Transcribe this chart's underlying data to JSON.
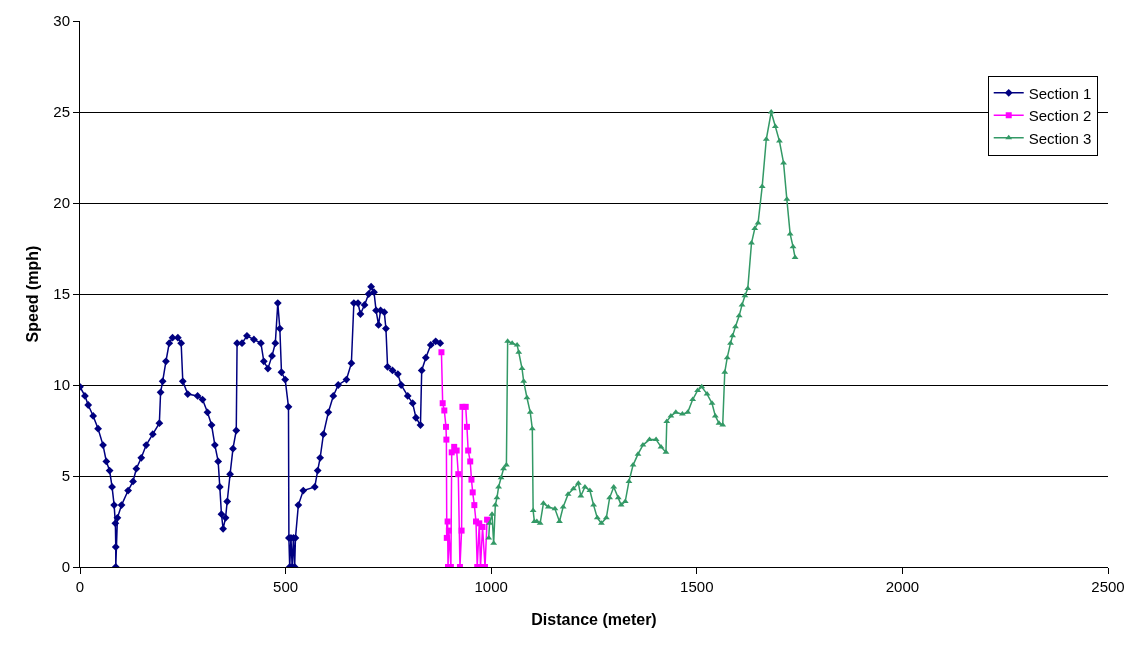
{
  "chart_data": {
    "type": "line",
    "xlabel": "Distance (meter)",
    "ylabel": "Speed (mph)",
    "xlim": [
      0,
      2500
    ],
    "xticks": [
      0,
      500,
      1000,
      1500,
      2000,
      2500
    ],
    "ylim": [
      0,
      30
    ],
    "yticks": [
      0,
      5,
      10,
      15,
      20,
      25,
      30
    ],
    "grid": "y",
    "legend": "top right",
    "line_style": "solid",
    "series": [
      {
        "name": "Section 1",
        "color": "#000080",
        "marker": "diamond",
        "x": [
          0,
          12,
          20,
          32,
          44,
          56,
          64,
          72,
          78,
          83,
          86,
          87,
          87,
          91,
          101,
          117,
          129,
          137,
          149,
          161,
          177,
          193,
          196,
          201,
          209,
          217,
          225,
          238,
          246,
          250,
          262,
          286,
          298,
          310,
          320,
          328,
          336,
          340,
          344,
          348,
          354,
          358,
          365,
          372,
          380,
          382,
          394,
          406,
          423,
          440,
          447,
          457,
          467,
          475,
          481,
          486,
          490,
          499,
          507,
          508,
          510,
          513,
          516,
          519,
          522,
          524,
          531,
          543,
          571,
          578,
          584,
          592,
          604,
          616,
          628,
          648,
          660,
          666,
          676,
          682,
          692,
          702,
          708,
          715,
          720,
          726,
          731,
          740,
          744,
          748,
          760,
          773,
          781,
          797,
          809,
          817,
          828,
          831,
          841,
          853,
          865,
          876
        ],
        "values": [
          9.9,
          9.4,
          8.9,
          8.3,
          7.6,
          6.7,
          5.8,
          5.3,
          4.4,
          3.4,
          2.4,
          1.1,
          0,
          2.7,
          3.4,
          4.2,
          4.7,
          5.4,
          6,
          6.7,
          7.3,
          7.9,
          9.6,
          10.2,
          11.3,
          12.3,
          12.6,
          12.6,
          12.3,
          10.2,
          9.5,
          9.4,
          9.2,
          8.5,
          7.8,
          6.7,
          5.8,
          4.4,
          2.9,
          2.1,
          2.7,
          3.6,
          5.1,
          6.5,
          7.5,
          12.3,
          12.3,
          12.7,
          12.5,
          12.3,
          11.3,
          10.9,
          11.6,
          12.3,
          14.5,
          13.1,
          10.7,
          10.3,
          8.8,
          1.6,
          0,
          1.6,
          0,
          1.6,
          0,
          1.6,
          3.4,
          4.2,
          4.4,
          5.3,
          6,
          7.3,
          8.5,
          9.4,
          10,
          10.3,
          11.2,
          14.5,
          14.5,
          13.9,
          14.4,
          15,
          15.4,
          15.1,
          14.1,
          13.3,
          14.1,
          14,
          13.1,
          11,
          10.8,
          10.6,
          10,
          9.4,
          9,
          8.2,
          7.8,
          10.8,
          11.5,
          12.2,
          12.4,
          12.3
        ]
      },
      {
        "name": "Section 2",
        "color": "#ff00ff",
        "marker": "square",
        "x": [
          879,
          882,
          886,
          890,
          891,
          892,
          894,
          895,
          897,
          902,
          904,
          910,
          916,
          920,
          924,
          928,
          930,
          938,
          941,
          944,
          949,
          952,
          955,
          959,
          963,
          966,
          971,
          974,
          979,
          985,
          990
        ],
        "values": [
          11.8,
          9,
          8.6,
          7.7,
          7,
          1.6,
          2.5,
          0,
          2,
          0,
          6.3,
          6.6,
          6.4,
          5.1,
          0,
          2,
          8.8,
          8.8,
          7.7,
          6.4,
          5.8,
          4.8,
          4.1,
          3.4,
          2.5,
          0,
          2.4,
          0,
          2.2,
          0,
          2.6
        ]
      },
      {
        "name": "Section 3",
        "color": "#339966",
        "marker": "triangle",
        "x": [
          994,
          996,
          1002,
          1006,
          1010,
          1014,
          1018,
          1024,
          1030,
          1037,
          1040,
          1051,
          1063,
          1067,
          1075,
          1079,
          1087,
          1095,
          1100,
          1102,
          1105,
          1111,
          1119,
          1127,
          1139,
          1155,
          1166,
          1175,
          1187,
          1200,
          1212,
          1218,
          1228,
          1240,
          1249,
          1258,
          1268,
          1280,
          1288,
          1298,
          1309,
          1316,
          1326,
          1335,
          1345,
          1357,
          1369,
          1385,
          1401,
          1413,
          1425,
          1427,
          1437,
          1449,
          1465,
          1478,
          1490,
          1502,
          1512,
          1525,
          1537,
          1545,
          1554,
          1563,
          1568,
          1574,
          1582,
          1587,
          1594,
          1603,
          1610,
          1617,
          1624,
          1633,
          1641,
          1649,
          1659,
          1669,
          1681,
          1691,
          1701,
          1711,
          1719,
          1727,
          1734,
          1739
        ],
        "values": [
          1.6,
          2.4,
          2.9,
          1.3,
          3.4,
          3.8,
          4.4,
          4.9,
          5.4,
          5.6,
          12.4,
          12.3,
          12.2,
          11.8,
          10.9,
          10.2,
          9.3,
          8.5,
          7.6,
          3.1,
          2.5,
          2.5,
          2.4,
          3.5,
          3.3,
          3.2,
          2.5,
          3.3,
          4,
          4.3,
          4.6,
          3.9,
          4.4,
          4.2,
          3.4,
          2.7,
          2.4,
          2.7,
          3.8,
          4.4,
          3.8,
          3.4,
          3.6,
          4.7,
          5.6,
          6.2,
          6.7,
          7,
          7,
          6.6,
          6.3,
          8,
          8.3,
          8.5,
          8.4,
          8.5,
          9.2,
          9.7,
          9.9,
          9.5,
          9,
          8.3,
          7.9,
          7.8,
          10.7,
          11.5,
          12.3,
          12.7,
          13.2,
          13.8,
          14.4,
          14.9,
          15.3,
          17.8,
          18.6,
          18.9,
          20.9,
          23.5,
          25,
          24.2,
          23.4,
          22.2,
          20.2,
          18.3,
          17.6,
          17
        ]
      }
    ]
  }
}
